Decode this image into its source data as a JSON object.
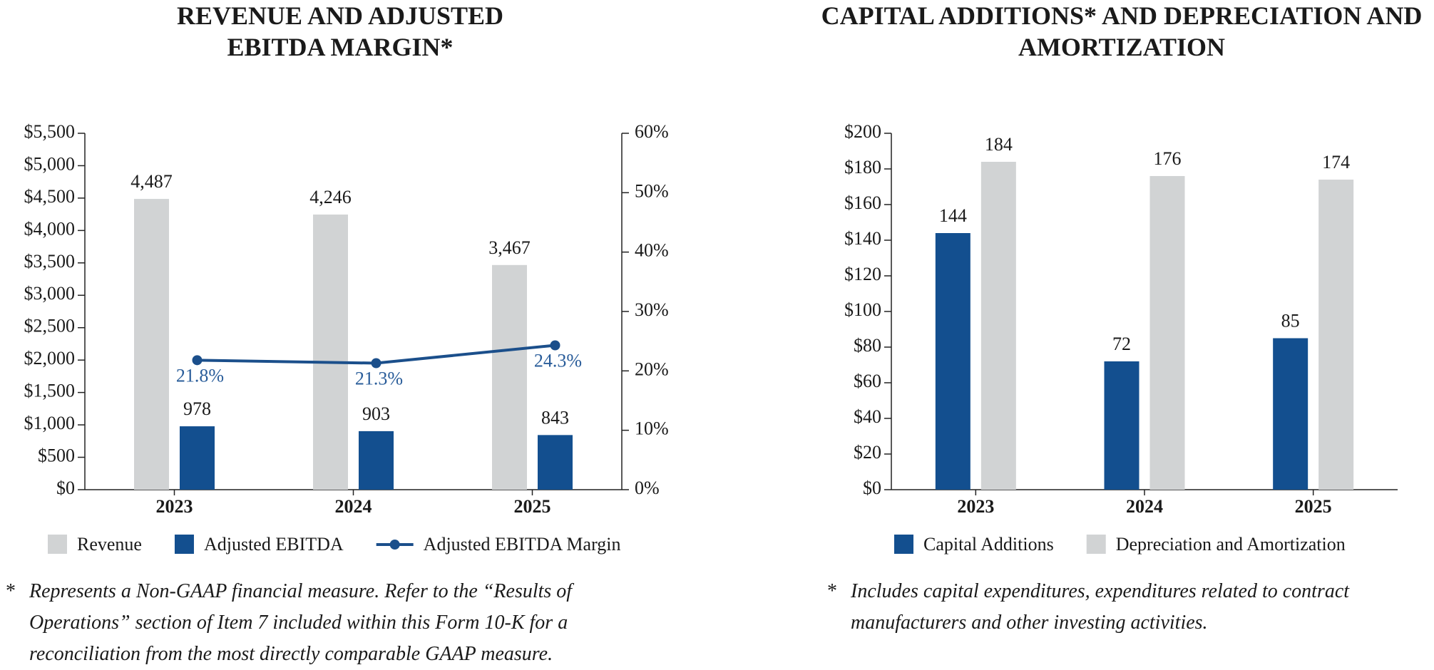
{
  "chart_data": [
    {
      "type": "bar",
      "title": "REVENUE AND ADJUSTED EBITDA MARGIN*",
      "categories": [
        "2023",
        "2024",
        "2025"
      ],
      "series": [
        {
          "name": "Revenue",
          "color": "#d1d3d4",
          "values": [
            4487,
            4246,
            3467
          ],
          "value_labels": [
            "4,487",
            "4,246",
            "3,467"
          ]
        },
        {
          "name": "Adjusted EBITDA",
          "color": "#134f8f",
          "values": [
            978,
            903,
            843
          ]
        },
        {
          "name": "Adjusted EBITDA Margin",
          "type": "line",
          "axis": "y2",
          "color": "#1b4f8b",
          "values": [
            21.8,
            21.3,
            24.3
          ],
          "value_labels": [
            "21.8%",
            "21.3%",
            "24.3%"
          ]
        }
      ],
      "ylim": [
        0,
        5500
      ],
      "yticks": [
        {
          "value": 0,
          "label": "$0"
        },
        {
          "value": 500,
          "label": "$500"
        },
        {
          "value": 1000,
          "label": "$1,000"
        },
        {
          "value": 1500,
          "label": "$1,500"
        },
        {
          "value": 2000,
          "label": "$2,000"
        },
        {
          "value": 2500,
          "label": "$2,500"
        },
        {
          "value": 3000,
          "label": "$3,000"
        },
        {
          "value": 3500,
          "label": "$3,500"
        },
        {
          "value": 4000,
          "label": "$4,000"
        },
        {
          "value": 4500,
          "label": "$4,500"
        },
        {
          "value": 5000,
          "label": "$5,000"
        },
        {
          "value": 5500,
          "label": "$5,500"
        }
      ],
      "y2lim": [
        0,
        60
      ],
      "y2ticks": [
        {
          "value": 0,
          "label": "0%"
        },
        {
          "value": 10,
          "label": "10%"
        },
        {
          "value": 20,
          "label": "20%"
        },
        {
          "value": 30,
          "label": "30%"
        },
        {
          "value": 40,
          "label": "40%"
        },
        {
          "value": 50,
          "label": "50%"
        },
        {
          "value": 60,
          "label": "60%"
        }
      ],
      "legend": "bottom",
      "note": {
        "marker": "*",
        "text": "Represents a Non-GAAP financial measure. Refer to the “Results of Operations” section of Item 7 included within this Form 10-K for a reconciliation from the most directly comparable GAAP measure."
      }
    },
    {
      "type": "bar",
      "title": "CAPITAL ADDITIONS* AND DEPRECIATION AND AMORTIZATION",
      "categories": [
        "2023",
        "2024",
        "2025"
      ],
      "series": [
        {
          "name": "Capital Additions",
          "color": "#134f8f",
          "values": [
            144,
            72,
            85
          ]
        },
        {
          "name": "Depreciation and Amortization",
          "color": "#d1d3d4",
          "values": [
            184,
            176,
            174
          ]
        }
      ],
      "ylim": [
        0,
        200
      ],
      "yticks": [
        {
          "value": 0,
          "label": "$0"
        },
        {
          "value": 20,
          "label": "$20"
        },
        {
          "value": 40,
          "label": "$40"
        },
        {
          "value": 60,
          "label": "$60"
        },
        {
          "value": 80,
          "label": "$80"
        },
        {
          "value": 100,
          "label": "$100"
        },
        {
          "value": 120,
          "label": "$120"
        },
        {
          "value": 140,
          "label": "$140"
        },
        {
          "value": 160,
          "label": "$160"
        },
        {
          "value": 180,
          "label": "$180"
        },
        {
          "value": 200,
          "label": "$200"
        }
      ],
      "legend": "bottom",
      "note": {
        "marker": "*",
        "text": "Includes capital expenditures, expenditures related to contract manufacturers and other investing activities."
      }
    }
  ]
}
